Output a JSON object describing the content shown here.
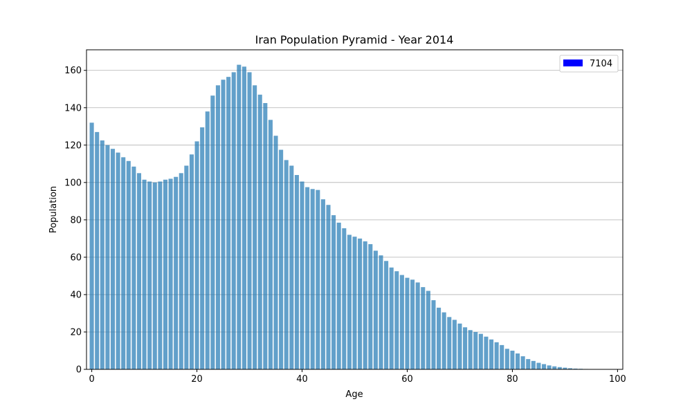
{
  "chart_data": {
    "type": "bar",
    "title": "Iran Population Pyramid - Year 2014",
    "xlabel": "Age",
    "ylabel": "Population",
    "xlim": [
      -1,
      101
    ],
    "ylim": [
      0,
      171
    ],
    "xticks": [
      0,
      20,
      40,
      60,
      80,
      100
    ],
    "yticks": [
      0,
      20,
      40,
      60,
      80,
      100,
      120,
      140,
      160
    ],
    "grid": "y-major",
    "legend": {
      "position": "top-right",
      "label": "7104",
      "color": "#0000ff"
    },
    "bar_color": "#1f77b4",
    "bar_opacity": 0.7,
    "x": [
      0,
      1,
      2,
      3,
      4,
      5,
      6,
      7,
      8,
      9,
      10,
      11,
      12,
      13,
      14,
      15,
      16,
      17,
      18,
      19,
      20,
      21,
      22,
      23,
      24,
      25,
      26,
      27,
      28,
      29,
      30,
      31,
      32,
      33,
      34,
      35,
      36,
      37,
      38,
      39,
      40,
      41,
      42,
      43,
      44,
      45,
      46,
      47,
      48,
      49,
      50,
      51,
      52,
      53,
      54,
      55,
      56,
      57,
      58,
      59,
      60,
      61,
      62,
      63,
      64,
      65,
      66,
      67,
      68,
      69,
      70,
      71,
      72,
      73,
      74,
      75,
      76,
      77,
      78,
      79,
      80,
      81,
      82,
      83,
      84,
      85,
      86,
      87,
      88,
      89,
      90,
      91,
      92,
      93,
      94,
      95,
      96,
      97,
      98,
      99,
      100
    ],
    "values": [
      132,
      127,
      122.5,
      120,
      118,
      116,
      113.5,
      111.5,
      108.5,
      105,
      101.5,
      100.5,
      100,
      100.5,
      101.5,
      102,
      103,
      105,
      109,
      115,
      122,
      129.5,
      138,
      146.5,
      152,
      155,
      156.5,
      159,
      163,
      162,
      159,
      152,
      147,
      142.5,
      133.5,
      125,
      117.5,
      112,
      109,
      104,
      100.5,
      97.5,
      96.5,
      96,
      91,
      88,
      82.5,
      78.5,
      75.5,
      72,
      71,
      70,
      68.5,
      67,
      63.5,
      61,
      58,
      54.5,
      52.5,
      50.5,
      49,
      48,
      46.5,
      44,
      42,
      37,
      33,
      30.5,
      28,
      26.5,
      24.5,
      22.5,
      21,
      20,
      19,
      17.5,
      16,
      14.5,
      13,
      11,
      10,
      8.5,
      7,
      5.5,
      4.5,
      3.5,
      2.8,
      2.1,
      1.6,
      1.2,
      0.9,
      0.6,
      0.4,
      0.3,
      0.2,
      0.15,
      0.1,
      0.07,
      0.05,
      0.03,
      0.02
    ]
  }
}
